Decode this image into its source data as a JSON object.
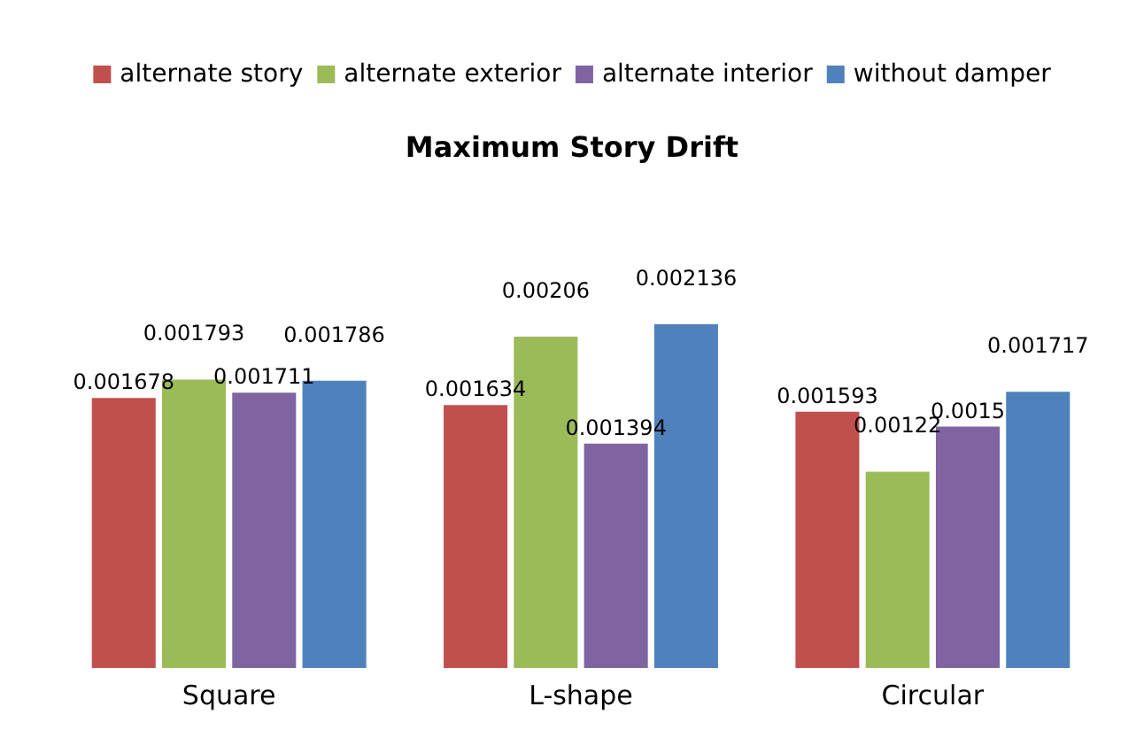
{
  "chart_data": {
    "type": "bar",
    "title": "Maximum Story Drift",
    "categories": [
      "Square",
      "L-shape",
      "Circular"
    ],
    "series": [
      {
        "name": "alternate story",
        "color": "#c0504d",
        "values": [
          0.001678,
          0.001634,
          0.001593
        ]
      },
      {
        "name": "alternate exterior",
        "color": "#9bbb59",
        "values": [
          0.001793,
          0.00206,
          0.00122
        ]
      },
      {
        "name": "alternate interior",
        "color": "#8064a2",
        "values": [
          0.001711,
          0.001394,
          0.0015
        ]
      },
      {
        "name": "without damper",
        "color": "#4f81bd",
        "values": [
          0.001786,
          0.002136,
          0.001717
        ]
      }
    ],
    "data_labels": true,
    "legend": "top",
    "grid": false
  }
}
